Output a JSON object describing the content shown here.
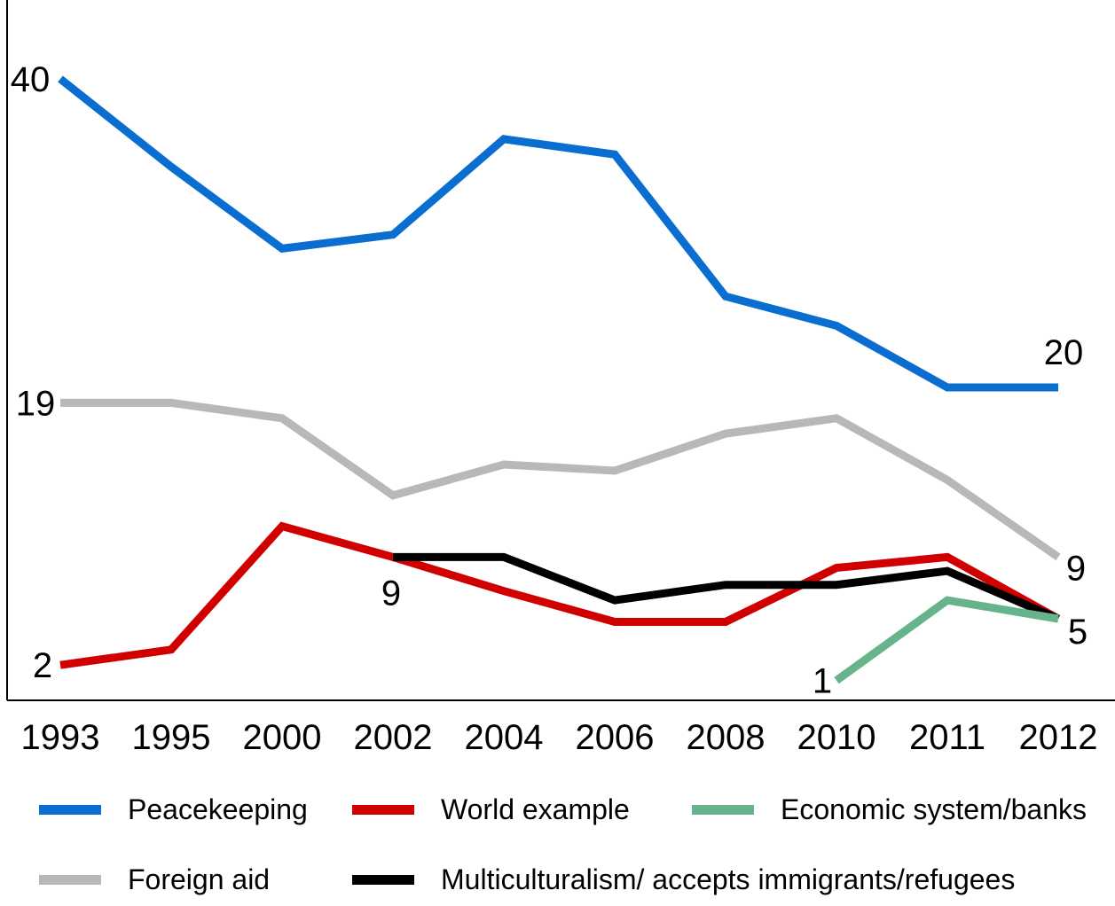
{
  "chart_data": {
    "type": "line",
    "title": "",
    "xlabel": "",
    "ylabel": "",
    "categories": [
      "1993",
      "1995",
      "2000",
      "2002",
      "2004",
      "2006",
      "2008",
      "2010",
      "2011",
      "2012"
    ],
    "ylim": [
      0,
      44
    ],
    "grid": false,
    "legend_position": "bottom",
    "series": [
      {
        "name": "Peacekeeping",
        "color": "#0A6ED1",
        "values": [
          40,
          34.3,
          29,
          29.9,
          36.1,
          35.1,
          25.9,
          24,
          20,
          20
        ]
      },
      {
        "name": "Foreign aid",
        "color": "#B8B8B8",
        "values": [
          19,
          19,
          18,
          13,
          15,
          14.6,
          17,
          18,
          14,
          9
        ]
      },
      {
        "name": "World example",
        "color": "#D00000",
        "values": [
          2,
          3,
          11,
          9,
          6.8,
          4.8,
          4.8,
          8.3,
          9,
          5
        ]
      },
      {
        "name": "Multiculturalism/ accepts immigrants/refugees",
        "color": "#000000",
        "values": [
          null,
          null,
          null,
          9,
          9,
          6.2,
          7.2,
          7.2,
          8.1,
          5
        ]
      },
      {
        "name": "Economic system/banks",
        "color": "#66B38C",
        "values": [
          null,
          null,
          null,
          null,
          null,
          null,
          null,
          1,
          6.2,
          5
        ]
      }
    ],
    "data_labels": [
      {
        "series": "Peacekeeping",
        "category": "1993",
        "text": "40"
      },
      {
        "series": "Peacekeeping",
        "category": "2012",
        "text": "20"
      },
      {
        "series": "Foreign aid",
        "category": "1993",
        "text": "19"
      },
      {
        "series": "Foreign aid",
        "category": "2012",
        "text": "9"
      },
      {
        "series": "World example",
        "category": "1993",
        "text": "2"
      },
      {
        "series": "Multiculturalism/ accepts immigrants/refugees",
        "category": "2002",
        "text": "9"
      },
      {
        "series": "Economic system/banks",
        "category": "2010",
        "text": "1"
      },
      {
        "series": "Economic system/banks",
        "category": "2012",
        "text": "5"
      }
    ]
  },
  "legend": {
    "items": [
      {
        "label": "Peacekeeping",
        "color": "#0A6ED1"
      },
      {
        "label": "World example",
        "color": "#D00000"
      },
      {
        "label": "Economic system/banks",
        "color": "#66B38C"
      },
      {
        "label": "Foreign aid",
        "color": "#B8B8B8"
      },
      {
        "label": "Multiculturalism/ accepts immigrants/refugees",
        "color": "#000000"
      }
    ]
  }
}
